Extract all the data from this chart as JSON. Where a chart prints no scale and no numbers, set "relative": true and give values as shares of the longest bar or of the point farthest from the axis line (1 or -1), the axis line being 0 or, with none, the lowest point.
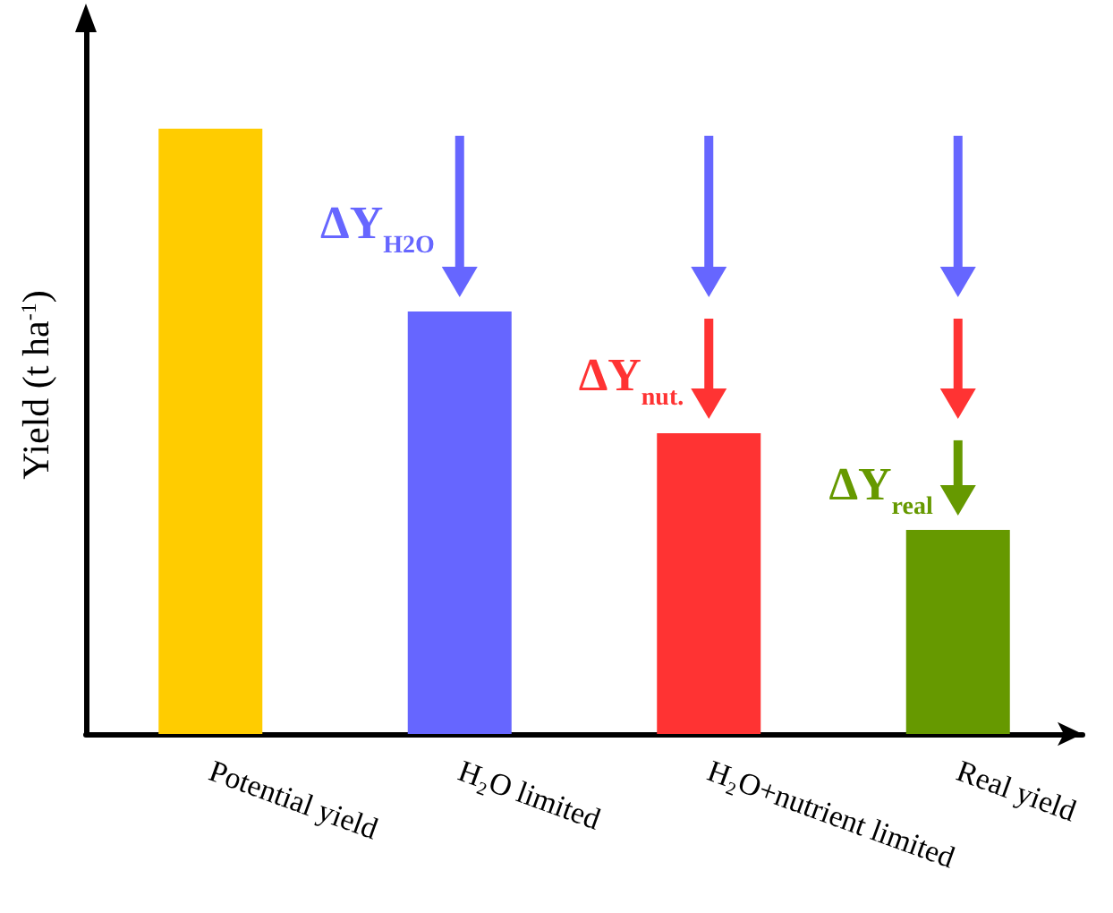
{
  "chart_data": {
    "type": "bar",
    "relative": true,
    "ylabel": "Yield (t ha$^{-1}$)",
    "categories": [
      "Potential yield",
      "H₂O limited",
      "H₂O+nutrient limited",
      "Real yield"
    ],
    "values": [
      1,
      0.698,
      0.497,
      0.337
    ],
    "colors": [
      "#ffcc00",
      "#6666ff",
      "#ff3333",
      "#669900"
    ],
    "annotations": [
      "ΔY$_{H2O}$",
      "ΔY$_{nut.}$",
      "ΔY$_{real}$"
    ]
  }
}
